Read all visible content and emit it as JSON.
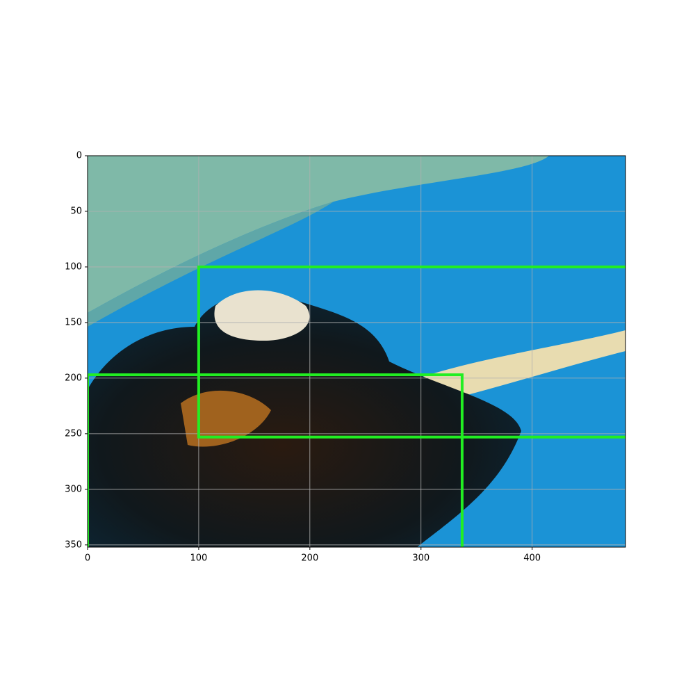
{
  "chart_data": {
    "type": "image",
    "xlim": [
      0,
      484
    ],
    "ylim": [
      352,
      0
    ],
    "xticks": [
      0,
      100,
      200,
      300,
      400
    ],
    "yticks": [
      0,
      50,
      100,
      150,
      200,
      250,
      300,
      350
    ],
    "grid": true,
    "boxes": [
      {
        "x0": 100,
        "y0": 100,
        "x1": 486,
        "y1": 253
      },
      {
        "x0": 0,
        "y0": 197,
        "x1": 337,
        "y1": 354
      }
    ],
    "box_color": "#22ee22"
  }
}
